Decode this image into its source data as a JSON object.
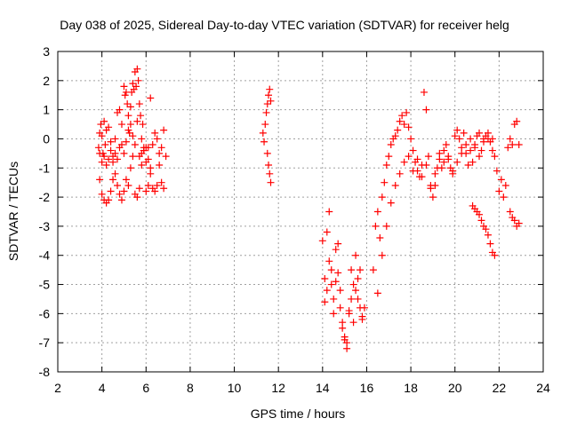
{
  "chart_data": {
    "type": "scatter",
    "title": "Day 038 of 2025, Sidereal Day-to-day VTEC variation (SDTVAR) for receiver helg",
    "xlabel": "GPS time / hours",
    "ylabel": "SDTVAR / TECUs",
    "xlim": [
      2,
      24
    ],
    "ylim": [
      -8,
      3
    ],
    "xticks": [
      "2",
      "4",
      "6",
      "8",
      "10",
      "12",
      "14",
      "16",
      "18",
      "20",
      "22",
      "24"
    ],
    "yticks": [
      "3",
      "2",
      "1",
      "0",
      "-1",
      "-2",
      "-3",
      "-4",
      "-5",
      "-6",
      "-7",
      "-8"
    ],
    "grid": true,
    "marker": "+",
    "color": "#ff0000",
    "series": [
      {
        "name": "SDTVAR",
        "x": [
          3.85,
          3.9,
          3.95,
          4.0,
          4.05,
          4.1,
          4.15,
          4.2,
          4.3,
          4.4,
          4.5,
          4.6,
          4.7,
          4.8,
          4.9,
          5.0,
          5.05,
          5.1,
          5.15,
          5.2,
          5.25,
          5.3,
          5.35,
          5.4,
          5.45,
          5.5,
          5.55,
          5.6,
          5.65,
          5.7,
          5.75,
          5.8,
          5.85,
          5.9,
          6.0,
          6.1,
          6.2,
          6.3,
          6.4,
          6.5,
          6.6,
          6.7,
          6.8,
          6.9,
          3.9,
          4.0,
          4.1,
          4.2,
          4.3,
          4.4,
          4.5,
          4.6,
          4.7,
          4.8,
          4.9,
          5.0,
          5.1,
          5.2,
          5.3,
          5.4,
          5.5,
          5.6,
          5.7,
          5.8,
          5.9,
          6.0,
          6.1,
          6.2,
          6.3,
          6.4,
          6.5,
          6.6,
          6.7,
          6.8,
          3.9,
          4.0,
          4.1,
          4.2,
          4.3,
          4.4,
          4.5,
          4.6,
          4.7,
          4.8,
          4.9,
          5.0,
          5.1,
          5.2,
          5.3,
          5.4,
          5.5,
          5.6,
          5.7,
          5.8,
          5.9,
          6.0,
          6.1,
          6.2,
          11.3,
          11.35,
          11.4,
          11.45,
          11.5,
          11.55,
          11.6,
          11.65,
          11.5,
          11.55,
          11.6,
          11.65,
          14.0,
          14.1,
          14.2,
          14.3,
          14.4,
          14.5,
          14.6,
          14.7,
          14.8,
          14.9,
          15.0,
          15.1,
          15.2,
          15.3,
          15.4,
          15.5,
          15.6,
          15.7,
          15.8,
          15.9,
          14.1,
          14.2,
          14.3,
          14.4,
          14.5,
          14.6,
          14.7,
          14.8,
          14.9,
          15.0,
          15.1,
          15.2,
          15.3,
          15.4,
          15.5,
          15.6,
          15.7,
          15.8,
          16.3,
          16.4,
          16.5,
          16.6,
          16.7,
          16.8,
          16.9,
          17.0,
          17.1,
          17.2,
          17.3,
          17.4,
          17.5,
          17.6,
          17.7,
          17.8,
          17.9,
          18.0,
          18.1,
          18.2,
          18.3,
          18.4,
          18.5,
          18.6,
          18.7,
          18.8,
          18.9,
          19.0,
          19.1,
          19.2,
          19.3,
          19.4,
          19.5,
          19.6,
          19.7,
          19.8,
          19.9,
          20.0,
          20.1,
          20.2,
          20.3,
          20.4,
          20.5,
          20.6,
          20.7,
          20.8,
          20.9,
          21.0,
          21.1,
          21.2,
          21.3,
          21.4,
          21.5,
          21.6,
          21.7,
          21.8,
          21.9,
          22.0,
          22.1,
          22.2,
          22.3,
          22.4,
          22.5,
          22.6,
          22.7,
          22.8,
          22.9,
          16.5,
          16.7,
          16.9,
          17.1,
          17.3,
          17.5,
          17.7,
          17.9,
          18.1,
          18.3,
          18.5,
          18.7,
          18.9,
          19.1,
          19.3,
          19.5,
          19.7,
          19.9,
          20.1,
          20.3,
          20.5,
          20.7,
          20.9,
          21.1,
          21.3,
          21.5,
          21.7,
          20.8,
          20.9,
          21.0,
          21.1,
          21.2,
          21.3,
          21.4,
          21.5,
          21.6,
          21.7,
          21.8,
          22.5,
          22.6,
          22.7,
          22.8,
          22.9
        ],
        "y": [
          -0.3,
          0.2,
          0.5,
          0.1,
          -0.5,
          0.6,
          -0.2,
          0.3,
          0.4,
          -0.1,
          -0.6,
          0.0,
          0.9,
          1.0,
          0.5,
          1.8,
          1.5,
          1.6,
          1.2,
          0.8,
          0.2,
          1.1,
          1.6,
          1.9,
          1.7,
          2.3,
          1.8,
          2.4,
          2.0,
          1.2,
          0.8,
          0.0,
          0.5,
          -0.4,
          -0.8,
          -0.3,
          1.4,
          -0.2,
          0.2,
          0.0,
          -0.5,
          -0.3,
          0.3,
          -0.6,
          -1.4,
          -1.9,
          -2.1,
          -2.2,
          -2.1,
          -1.8,
          -1.4,
          -1.2,
          -1.6,
          -1.9,
          -2.1,
          -1.8,
          -1.4,
          -1.6,
          -1.0,
          -0.6,
          -1.9,
          -2.0,
          -1.7,
          -0.5,
          -0.3,
          -1.8,
          -1.6,
          -1.2,
          -1.7,
          -1.8,
          -1.6,
          -0.9,
          -1.5,
          -1.7,
          -0.5,
          -0.8,
          -0.6,
          -0.9,
          -0.7,
          -0.4,
          -0.8,
          -0.5,
          -0.7,
          -0.3,
          -0.2,
          -0.5,
          -0.1,
          0.3,
          0.5,
          0.1,
          -0.2,
          0.6,
          -0.6,
          -0.9,
          -0.4,
          -0.3,
          -0.7,
          -1.0,
          0.2,
          -0.1,
          0.5,
          0.9,
          1.2,
          1.5,
          1.7,
          1.3,
          -0.5,
          -0.9,
          -1.2,
          -1.5,
          -3.5,
          -4.8,
          -5.2,
          -2.5,
          -4.5,
          -5.5,
          -3.8,
          -4.6,
          -5.8,
          -6.3,
          -6.9,
          -7.2,
          -6.0,
          -5.5,
          -6.3,
          -5.2,
          -4.8,
          -4.5,
          -6.2,
          -5.8,
          -5.6,
          -3.2,
          -4.2,
          -5.0,
          -6.0,
          -4.9,
          -3.6,
          -5.2,
          -6.5,
          -6.8,
          -7.0,
          -5.9,
          -4.5,
          -5.0,
          -4.0,
          -5.5,
          -5.8,
          -6.1,
          -4.5,
          -3.0,
          -2.5,
          -3.4,
          -2.0,
          -1.5,
          -0.9,
          -0.6,
          -0.2,
          0.0,
          0.1,
          0.3,
          0.6,
          0.8,
          0.5,
          0.9,
          0.4,
          0.0,
          -0.4,
          -0.8,
          -1.1,
          -1.3,
          -0.9,
          1.6,
          1.0,
          -0.6,
          -1.7,
          -2.0,
          -1.6,
          -1.0,
          -0.5,
          -1.0,
          -0.4,
          -0.2,
          -0.7,
          -1.0,
          -1.2,
          0.1,
          0.3,
          0.0,
          -0.3,
          0.2,
          -0.5,
          -0.9,
          -0.4,
          -0.8,
          -0.2,
          0.1,
          0.2,
          -0.4,
          0.0,
          0.1,
          0.0,
          -0.1,
          0.0,
          -0.6,
          -1.1,
          -1.8,
          -1.4,
          -2.0,
          -1.6,
          -0.3,
          0.0,
          -0.2,
          0.5,
          0.6,
          -0.2,
          -5.3,
          -4.0,
          -3.0,
          -2.2,
          -1.6,
          -1.2,
          -0.8,
          -0.6,
          -1.1,
          -0.7,
          -1.3,
          -0.9,
          -1.6,
          -1.2,
          -0.7,
          -0.8,
          -0.6,
          -1.1,
          -0.8,
          -0.5,
          -0.2,
          0.0,
          -0.3,
          -0.6,
          -0.1,
          0.2,
          -0.4,
          -2.3,
          -2.4,
          -2.5,
          -2.6,
          -2.8,
          -3.0,
          -3.1,
          -3.3,
          -3.6,
          -3.9,
          -4.0,
          -2.5,
          -2.7,
          -2.8,
          -3.0,
          -2.9
        ]
      }
    ]
  }
}
